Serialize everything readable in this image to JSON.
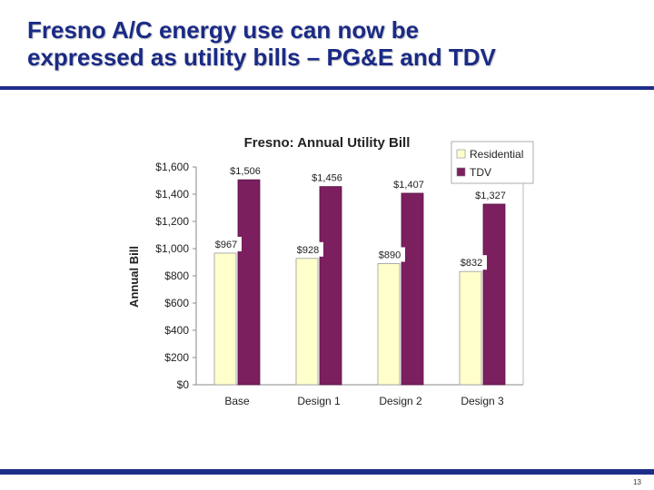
{
  "slide": {
    "title_line1": "Fresno A/C energy use can now be",
    "title_line2": "expressed as utility bills – PG&E and TDV",
    "page_number": "13"
  },
  "colors": {
    "title": "#1a2a86",
    "rule": "#1f2d8a",
    "residential": "#ffffcc",
    "tdv": "#7b1f5f"
  },
  "chart_data": {
    "type": "bar",
    "title": "Fresno: Annual Utility Bill",
    "xlabel": "",
    "ylabel": "Annual Bill",
    "categories": [
      "Base",
      "Design 1",
      "Design 2",
      "Design 3"
    ],
    "series": [
      {
        "name": "Residential",
        "values": [
          967,
          928,
          890,
          832
        ],
        "labels": [
          "$967",
          "$928",
          "$890",
          "$832"
        ],
        "color": "#ffffcc"
      },
      {
        "name": "TDV",
        "values": [
          1506,
          1456,
          1407,
          1327
        ],
        "labels": [
          "$1,506",
          "$1,456",
          "$1,407",
          "$1,327"
        ],
        "color": "#7b1f5f"
      }
    ],
    "ylim": [
      0,
      1600
    ],
    "yticks": [
      0,
      200,
      400,
      600,
      800,
      1000,
      1200,
      1400,
      1600
    ],
    "ytick_labels": [
      "$0",
      "$200",
      "$400",
      "$600",
      "$800",
      "$1,000",
      "$1,200",
      "$1,400",
      "$1,600"
    ],
    "grid": false,
    "legend": "top-right"
  }
}
